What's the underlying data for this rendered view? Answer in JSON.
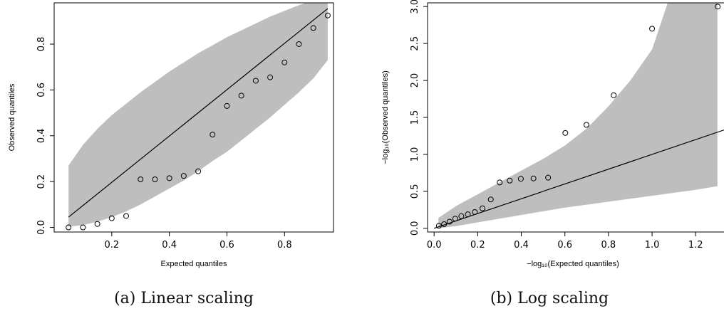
{
  "figure": {
    "captions": {
      "a": "(a) Linear scaling",
      "b": "(b) Log scaling"
    }
  },
  "colors": {
    "band": "#bebebe",
    "line": "#000000",
    "points": "#000000",
    "frame": "#000000"
  },
  "chart_data": [
    {
      "type": "scatter",
      "title": "",
      "xlabel": "Expected quantiles",
      "ylabel": "Observed quantiles",
      "xlim": [
        0.0,
        0.97
      ],
      "ylim": [
        -0.02,
        0.98
      ],
      "xticks": [
        "0.2",
        "0.4",
        "0.6",
        "0.8"
      ],
      "yticks": [
        "0.0",
        "0.2",
        "0.4",
        "0.6",
        "0.8"
      ],
      "grid": false,
      "series": [
        {
          "x": [
            0.05,
            0.1,
            0.15,
            0.2,
            0.25,
            0.3,
            0.35,
            0.4,
            0.45,
            0.5,
            0.55,
            0.6,
            0.65,
            0.7,
            0.75,
            0.8,
            0.85,
            0.9,
            0.95
          ],
          "y": [
            0.0,
            0.0,
            0.015,
            0.04,
            0.05,
            0.21,
            0.21,
            0.215,
            0.225,
            0.245,
            0.405,
            0.53,
            0.575,
            0.64,
            0.655,
            0.72,
            0.8,
            0.87,
            0.925
          ]
        }
      ],
      "reference_line": {
        "x": [
          0.05,
          0.95
        ],
        "y": [
          0.045,
          0.955
        ]
      },
      "confidence_band": {
        "x": [
          0.05,
          0.1,
          0.15,
          0.2,
          0.25,
          0.3,
          0.35,
          0.4,
          0.45,
          0.5,
          0.55,
          0.6,
          0.65,
          0.7,
          0.75,
          0.8,
          0.85,
          0.9,
          0.95
        ],
        "lower": [
          0.003,
          0.01,
          0.025,
          0.045,
          0.07,
          0.1,
          0.135,
          0.17,
          0.205,
          0.245,
          0.29,
          0.33,
          0.38,
          0.43,
          0.48,
          0.535,
          0.59,
          0.65,
          0.73
        ],
        "upper": [
          0.27,
          0.36,
          0.43,
          0.49,
          0.54,
          0.59,
          0.635,
          0.68,
          0.72,
          0.76,
          0.795,
          0.83,
          0.86,
          0.89,
          0.92,
          0.945,
          0.97,
          0.99,
          1.0
        ]
      }
    },
    {
      "type": "scatter",
      "title": "",
      "xlabel": "−log₁₀(Expected quantiles)",
      "ylabel": "−log₁₀(Observed quantiles)",
      "xlim": [
        -0.03,
        1.33
      ],
      "ylim": [
        -0.05,
        3.05
      ],
      "xticks": [
        "0.0",
        "0.2",
        "0.4",
        "0.6",
        "0.8",
        "1.0",
        "1.2"
      ],
      "yticks": [
        "0.0",
        "0.5",
        "1.0",
        "1.5",
        "2.0",
        "2.5",
        "3.0"
      ],
      "grid": false,
      "series": [
        {
          "x": [
            0.022,
            0.046,
            0.071,
            0.097,
            0.125,
            0.155,
            0.187,
            0.222,
            0.26,
            0.301,
            0.347,
            0.398,
            0.456,
            0.523,
            0.602,
            0.699,
            0.824,
            1.0,
            1.301
          ],
          "y": [
            0.034,
            0.056,
            0.09,
            0.13,
            0.165,
            0.19,
            0.22,
            0.27,
            0.39,
            0.62,
            0.645,
            0.67,
            0.675,
            0.685,
            1.29,
            1.4,
            1.8,
            2.7,
            3.0
          ]
        }
      ],
      "reference_line": {
        "x": [
          0.0,
          1.33
        ],
        "y": [
          0.0,
          1.33
        ]
      },
      "confidence_band": {
        "x": [
          0.02,
          0.1,
          0.2,
          0.3,
          0.4,
          0.5,
          0.6,
          0.7,
          0.8,
          0.9,
          1.0,
          1.1,
          1.2,
          1.3
        ],
        "lower": [
          0.0,
          0.03,
          0.08,
          0.13,
          0.18,
          0.23,
          0.28,
          0.32,
          0.36,
          0.4,
          0.44,
          0.48,
          0.52,
          0.57
        ],
        "upper": [
          0.14,
          0.3,
          0.46,
          0.62,
          0.78,
          0.94,
          1.12,
          1.35,
          1.65,
          2.0,
          2.42,
          3.3,
          3.8,
          4.2
        ]
      }
    }
  ]
}
